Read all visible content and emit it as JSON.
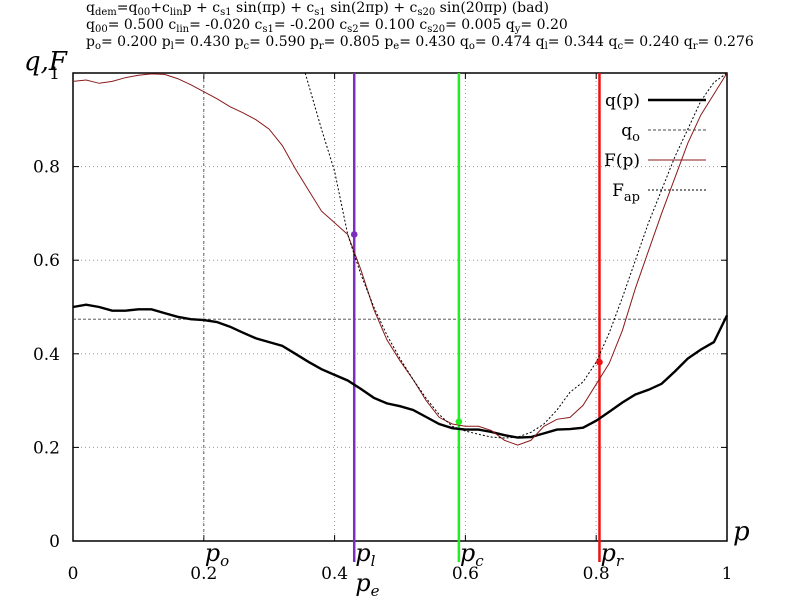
{
  "header": {
    "line1": [
      {
        "t": "q"
      },
      {
        "s": "dem"
      },
      {
        "t": "=q"
      },
      {
        "s": "00"
      },
      {
        "t": "+c"
      },
      {
        "s": "lin"
      },
      {
        "t": "p + c"
      },
      {
        "s": "s1"
      },
      {
        "t": " sin(πp) + c"
      },
      {
        "s": "s1"
      },
      {
        "t": " sin(2πp) +  c"
      },
      {
        "s": "s20"
      },
      {
        "t": " sin(20πp) (bad)"
      }
    ],
    "line2": [
      {
        "t": "q"
      },
      {
        "s": "00"
      },
      {
        "t": "= 0.500 c"
      },
      {
        "s": "lin"
      },
      {
        "t": "= -0.020 c"
      },
      {
        "s": "s1"
      },
      {
        "t": "= -0.200 c"
      },
      {
        "s": "s2"
      },
      {
        "t": "= 0.100 c"
      },
      {
        "s": "s20"
      },
      {
        "t": "= 0.005 q"
      },
      {
        "s": "y"
      },
      {
        "t": "= 0.20"
      }
    ],
    "line3": [
      {
        "t": "p"
      },
      {
        "s": "o"
      },
      {
        "t": "= 0.200 p"
      },
      {
        "s": "l"
      },
      {
        "t": "= 0.430 p"
      },
      {
        "s": "c"
      },
      {
        "t": "= 0.590 p"
      },
      {
        "s": "r"
      },
      {
        "t": "= 0.805 p"
      },
      {
        "s": "e"
      },
      {
        "t": "= 0.430 q"
      },
      {
        "s": "o"
      },
      {
        "t": "= 0.474 q"
      },
      {
        "s": "l"
      },
      {
        "t": "= 0.344 q"
      },
      {
        "s": "c"
      },
      {
        "t": "= 0.240 q"
      },
      {
        "s": "r"
      },
      {
        "t": "= 0.276"
      }
    ]
  },
  "chart_data": {
    "type": "line",
    "xlabel": "p",
    "ylabel": "q,F",
    "xlim": [
      0,
      1
    ],
    "ylim": [
      0,
      1
    ],
    "xticks": [
      "0",
      "0.2",
      "0.4",
      "0.6",
      "0.8",
      "1"
    ],
    "yticks": [
      "0",
      "0.2",
      "0.4",
      "0.6",
      "0.8",
      "1"
    ],
    "grid": true,
    "legend_position": "top-right",
    "legend": [
      {
        "label": "q(p)",
        "sub": "",
        "style": "thick-black"
      },
      {
        "label": "q",
        "sub": "o",
        "style": "thin-dashed"
      },
      {
        "label": "F(p)",
        "sub": "",
        "style": "thin-brown"
      },
      {
        "label": "F",
        "sub": "ap",
        "style": "dotted-black"
      }
    ],
    "colors": {
      "q": "#000000",
      "F": "#8b1a1a",
      "fap": "#000000",
      "qo": "#444444",
      "pl": "#7b2fbf",
      "pc": "#22ee22",
      "pr": "#ee1111"
    },
    "series": [
      {
        "name": "q(p)",
        "key": "q",
        "x": [
          0,
          0.02,
          0.04,
          0.06,
          0.08,
          0.1,
          0.12,
          0.14,
          0.16,
          0.18,
          0.2,
          0.22,
          0.24,
          0.26,
          0.28,
          0.3,
          0.32,
          0.34,
          0.36,
          0.38,
          0.4,
          0.42,
          0.44,
          0.46,
          0.48,
          0.5,
          0.52,
          0.54,
          0.56,
          0.58,
          0.6,
          0.62,
          0.64,
          0.66,
          0.68,
          0.7,
          0.72,
          0.74,
          0.76,
          0.78,
          0.8,
          0.82,
          0.84,
          0.86,
          0.88,
          0.9,
          0.92,
          0.94,
          0.96,
          0.98,
          1.0
        ],
        "y": [
          0.5,
          0.505,
          0.5,
          0.492,
          0.492,
          0.495,
          0.495,
          0.487,
          0.479,
          0.474,
          0.472,
          0.468,
          0.458,
          0.445,
          0.433,
          0.425,
          0.417,
          0.4,
          0.383,
          0.367,
          0.355,
          0.343,
          0.325,
          0.306,
          0.294,
          0.288,
          0.28,
          0.265,
          0.25,
          0.241,
          0.238,
          0.238,
          0.233,
          0.226,
          0.221,
          0.222,
          0.23,
          0.238,
          0.239,
          0.242,
          0.257,
          0.276,
          0.296,
          0.313,
          0.323,
          0.336,
          0.362,
          0.39,
          0.409,
          0.425,
          0.482
        ]
      },
      {
        "name": "F(p)",
        "key": "F",
        "x": [
          0,
          0.02,
          0.04,
          0.06,
          0.08,
          0.1,
          0.12,
          0.14,
          0.16,
          0.18,
          0.2,
          0.22,
          0.24,
          0.26,
          0.28,
          0.3,
          0.32,
          0.34,
          0.36,
          0.38,
          0.4,
          0.42,
          0.44,
          0.46,
          0.48,
          0.5,
          0.52,
          0.54,
          0.56,
          0.58,
          0.6,
          0.62,
          0.64,
          0.66,
          0.68,
          0.7,
          0.72,
          0.74,
          0.76,
          0.78,
          0.8,
          0.82,
          0.84,
          0.86,
          0.88,
          0.9,
          0.92,
          0.94,
          0.96,
          0.98,
          1.0
        ],
        "y": [
          0.982,
          0.985,
          0.978,
          0.982,
          0.99,
          0.995,
          0.998,
          0.997,
          0.988,
          0.975,
          0.96,
          0.945,
          0.928,
          0.915,
          0.9,
          0.88,
          0.845,
          0.795,
          0.75,
          0.705,
          0.68,
          0.655,
          0.58,
          0.495,
          0.43,
          0.385,
          0.345,
          0.3,
          0.264,
          0.25,
          0.245,
          0.245,
          0.236,
          0.215,
          0.205,
          0.215,
          0.245,
          0.26,
          0.264,
          0.29,
          0.335,
          0.38,
          0.45,
          0.54,
          0.62,
          0.7,
          0.775,
          0.85,
          0.91,
          0.955,
          1.0
        ]
      },
      {
        "name": "F_ap",
        "key": "fap",
        "x": [
          0.355,
          0.38,
          0.4,
          0.42,
          0.44,
          0.46,
          0.48,
          0.5,
          0.52,
          0.54,
          0.56,
          0.58,
          0.6,
          0.62,
          0.64,
          0.66,
          0.68,
          0.7,
          0.72,
          0.74,
          0.76,
          0.78,
          0.8,
          0.82,
          0.84,
          0.86,
          0.88,
          0.9,
          0.92,
          0.94,
          0.96,
          0.98,
          1.0
        ],
        "y": [
          1.0,
          0.88,
          0.79,
          0.655,
          0.57,
          0.5,
          0.44,
          0.39,
          0.345,
          0.305,
          0.27,
          0.245,
          0.235,
          0.228,
          0.222,
          0.22,
          0.222,
          0.232,
          0.25,
          0.28,
          0.318,
          0.34,
          0.382,
          0.445,
          0.52,
          0.6,
          0.68,
          0.75,
          0.82,
          0.88,
          0.94,
          0.98,
          1.0
        ]
      }
    ],
    "hline": {
      "name": "q_o",
      "y": 0.474
    },
    "vlines": [
      {
        "name": "p_o",
        "x": 0.2,
        "label": "p",
        "sub": "o",
        "style": "dashed"
      },
      {
        "name": "p_l",
        "x": 0.43,
        "label": "p",
        "sub": "l",
        "style": "pl",
        "point_y": 0.655
      },
      {
        "name": "p_c",
        "x": 0.59,
        "label": "p",
        "sub": "c",
        "style": "pc",
        "point_y": 0.255
      },
      {
        "name": "p_r",
        "x": 0.805,
        "label": "p",
        "sub": "r",
        "style": "pr",
        "point_y": 0.382
      }
    ],
    "extra_labels": [
      {
        "name": "p_e",
        "x": 0.43,
        "label": "p",
        "sub": "e"
      }
    ]
  }
}
